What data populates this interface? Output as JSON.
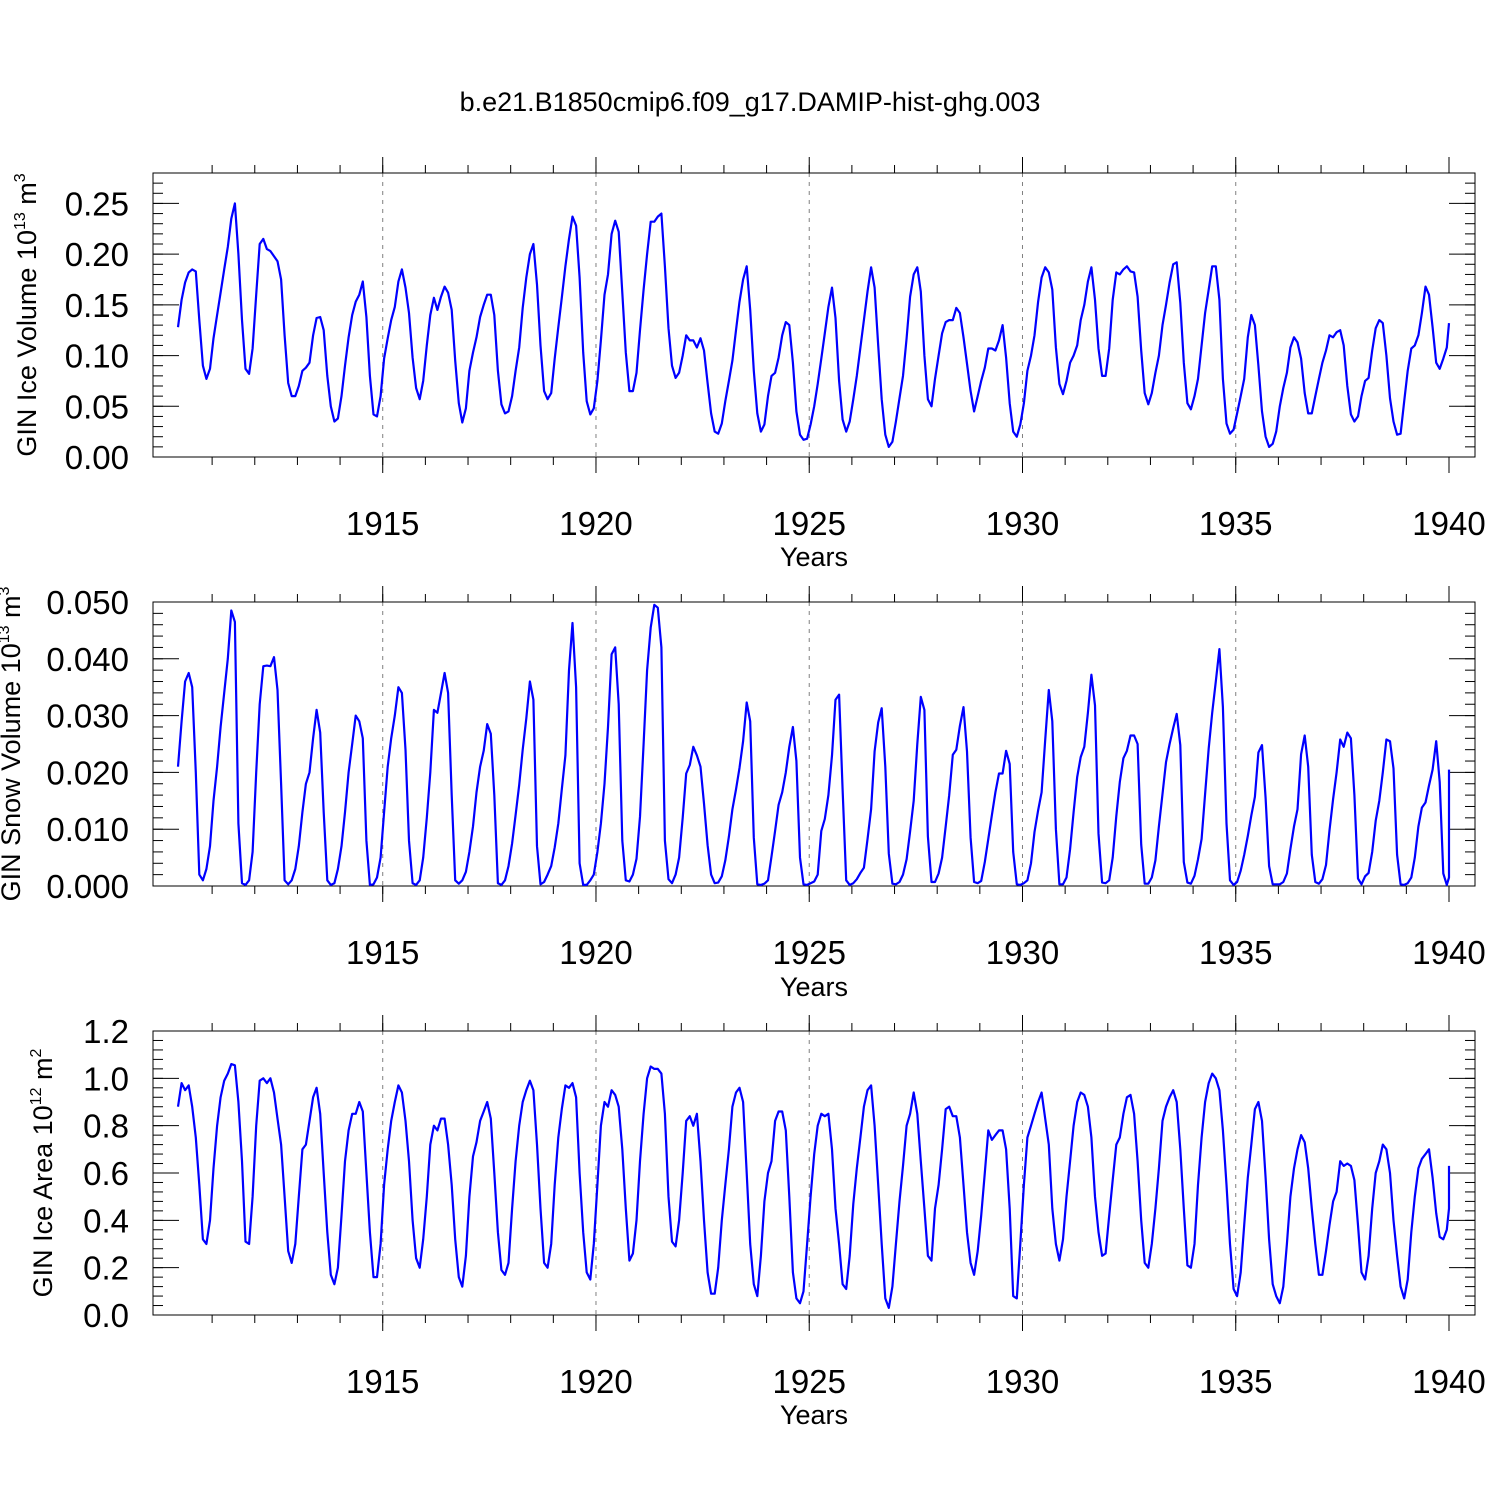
{
  "figure_title": "b.e21.B1850cmip6.f09_g17.DAMIP-hist-ghg.003",
  "colors": {
    "series": "#0000ff",
    "axes": "#000000",
    "gridlines": "#808080"
  },
  "chart_data": [
    {
      "id": "ice-volume",
      "type": "line",
      "title": "b.e21.B1850cmip6.f09_g17.DAMIP-hist-ghg.003",
      "xlabel": "Years",
      "ylabel": {
        "prefix": "GIN Ice Volume 10",
        "exponent": "13",
        "unit": " m",
        "unit_exponent": "3"
      },
      "xlim": [
        1910.2,
        1940.0
      ],
      "ylim": [
        0.0,
        0.28
      ],
      "x_ticks": [
        1915,
        1920,
        1925,
        1930,
        1935,
        1940
      ],
      "x_tick_labels": [
        "1915",
        "1920",
        "1925",
        "1930",
        "1935",
        "1940"
      ],
      "y_ticks": [
        0.0,
        0.05,
        0.1,
        0.15,
        0.2,
        0.25
      ],
      "y_tick_labels": [
        "0.00",
        "0.05",
        "0.10",
        "0.15",
        "0.20",
        "0.25"
      ],
      "series_name": "GIN Ice Volume",
      "x_start": 1910.2,
      "x_step": 0.08333,
      "values": [
        0.128,
        0.155,
        0.172,
        0.182,
        0.185,
        0.183,
        0.135,
        0.09,
        0.077,
        0.087,
        0.117,
        0.14,
        0.162,
        0.185,
        0.207,
        0.235,
        0.25,
        0.2,
        0.135,
        0.087,
        0.082,
        0.107,
        0.16,
        0.21,
        0.215,
        0.205,
        0.203,
        0.198,
        0.193,
        0.175,
        0.12,
        0.073,
        0.06,
        0.06,
        0.07,
        0.085,
        0.088,
        0.093,
        0.12,
        0.137,
        0.138,
        0.125,
        0.08,
        0.05,
        0.035,
        0.038,
        0.06,
        0.09,
        0.118,
        0.14,
        0.153,
        0.16,
        0.173,
        0.138,
        0.08,
        0.042,
        0.04,
        0.06,
        0.097,
        0.117,
        0.135,
        0.148,
        0.173,
        0.185,
        0.167,
        0.142,
        0.098,
        0.068,
        0.057,
        0.075,
        0.11,
        0.14,
        0.157,
        0.145,
        0.158,
        0.168,
        0.162,
        0.145,
        0.095,
        0.053,
        0.034,
        0.048,
        0.085,
        0.103,
        0.118,
        0.138,
        0.15,
        0.16,
        0.16,
        0.14,
        0.085,
        0.052,
        0.043,
        0.045,
        0.06,
        0.085,
        0.108,
        0.147,
        0.177,
        0.2,
        0.21,
        0.17,
        0.11,
        0.065,
        0.057,
        0.063,
        0.097,
        0.128,
        0.157,
        0.188,
        0.215,
        0.237,
        0.228,
        0.177,
        0.103,
        0.055,
        0.042,
        0.048,
        0.075,
        0.115,
        0.16,
        0.18,
        0.22,
        0.233,
        0.222,
        0.162,
        0.103,
        0.065,
        0.065,
        0.083,
        0.125,
        0.165,
        0.2,
        0.232,
        0.232,
        0.237,
        0.24,
        0.188,
        0.127,
        0.09,
        0.078,
        0.083,
        0.1,
        0.12,
        0.115,
        0.115,
        0.108,
        0.117,
        0.105,
        0.073,
        0.043,
        0.025,
        0.023,
        0.033,
        0.055,
        0.075,
        0.095,
        0.125,
        0.153,
        0.175,
        0.188,
        0.145,
        0.085,
        0.043,
        0.025,
        0.032,
        0.06,
        0.08,
        0.083,
        0.098,
        0.12,
        0.133,
        0.13,
        0.093,
        0.045,
        0.022,
        0.017,
        0.018,
        0.032,
        0.05,
        0.072,
        0.097,
        0.122,
        0.148,
        0.167,
        0.137,
        0.075,
        0.037,
        0.025,
        0.035,
        0.057,
        0.08,
        0.108,
        0.135,
        0.163,
        0.187,
        0.167,
        0.11,
        0.057,
        0.022,
        0.01,
        0.015,
        0.035,
        0.058,
        0.08,
        0.117,
        0.158,
        0.18,
        0.187,
        0.163,
        0.1,
        0.057,
        0.05,
        0.077,
        0.1,
        0.122,
        0.133,
        0.135,
        0.135,
        0.147,
        0.142,
        0.118,
        0.092,
        0.065,
        0.045,
        0.06,
        0.075,
        0.088,
        0.107,
        0.107,
        0.105,
        0.115,
        0.13,
        0.098,
        0.053,
        0.025,
        0.02,
        0.032,
        0.053,
        0.085,
        0.1,
        0.12,
        0.153,
        0.177,
        0.187,
        0.182,
        0.165,
        0.108,
        0.072,
        0.062,
        0.075,
        0.093,
        0.1,
        0.11,
        0.135,
        0.15,
        0.173,
        0.187,
        0.155,
        0.107,
        0.08,
        0.08,
        0.107,
        0.155,
        0.182,
        0.18,
        0.185,
        0.188,
        0.183,
        0.182,
        0.158,
        0.105,
        0.063,
        0.052,
        0.063,
        0.083,
        0.1,
        0.13,
        0.15,
        0.172,
        0.19,
        0.192,
        0.152,
        0.093,
        0.053,
        0.047,
        0.06,
        0.077,
        0.11,
        0.142,
        0.165,
        0.188,
        0.188,
        0.155,
        0.077,
        0.033,
        0.023,
        0.027,
        0.043,
        0.06,
        0.077,
        0.118,
        0.14,
        0.13,
        0.09,
        0.045,
        0.02,
        0.01,
        0.013,
        0.025,
        0.05,
        0.068,
        0.083,
        0.108,
        0.118,
        0.113,
        0.097,
        0.063,
        0.043,
        0.043,
        0.06,
        0.077,
        0.093,
        0.105,
        0.12,
        0.118,
        0.123,
        0.125,
        0.11,
        0.07,
        0.042,
        0.035,
        0.04,
        0.06,
        0.075,
        0.078,
        0.105,
        0.127,
        0.135,
        0.132,
        0.1,
        0.058,
        0.035,
        0.022,
        0.023,
        0.055,
        0.085,
        0.107,
        0.11,
        0.12,
        0.142,
        0.168,
        0.16,
        0.128,
        0.093,
        0.087,
        0.097,
        0.108,
        0.132
      ]
    },
    {
      "id": "snow-volume",
      "type": "line",
      "xlabel": "Years",
      "ylabel": {
        "prefix": "GIN Snow Volume 10",
        "exponent": "13",
        "unit": " m",
        "unit_exponent": "3"
      },
      "xlim": [
        1910.2,
        1940.0
      ],
      "ylim": [
        0.0,
        0.05
      ],
      "x_ticks": [
        1915,
        1920,
        1925,
        1930,
        1935,
        1940
      ],
      "x_tick_labels": [
        "1915",
        "1920",
        "1925",
        "1930",
        "1935",
        "1940"
      ],
      "y_ticks": [
        0.0,
        0.01,
        0.02,
        0.03,
        0.04,
        0.05
      ],
      "y_tick_labels": [
        "0.000",
        "0.010",
        "0.020",
        "0.030",
        "0.040",
        "0.050"
      ],
      "series_name": "GIN Snow Volume",
      "x_start": 1910.2,
      "x_step": 0.08333,
      "values": [
        0.021,
        0.029,
        0.036,
        0.0375,
        0.035,
        0.02,
        0.002,
        0.001,
        0.003,
        0.007,
        0.015,
        0.021,
        0.028,
        0.034,
        0.04,
        0.0485,
        0.0465,
        0.011,
        0.0005,
        0.0002,
        0.001,
        0.006,
        0.02,
        0.032,
        0.0387,
        0.0388,
        0.0387,
        0.0403,
        0.0345,
        0.018,
        0.001,
        0.0003,
        0.001,
        0.003,
        0.007,
        0.013,
        0.018,
        0.02,
        0.026,
        0.031,
        0.027,
        0.013,
        0.001,
        0.0002,
        0.0005,
        0.003,
        0.007,
        0.013,
        0.02,
        0.025,
        0.03,
        0.029,
        0.026,
        0.008,
        0.0002,
        0.0003,
        0.0015,
        0.005,
        0.013,
        0.021,
        0.026,
        0.03,
        0.035,
        0.034,
        0.024,
        0.008,
        0.0005,
        0.0002,
        0.001,
        0.005,
        0.012,
        0.02,
        0.031,
        0.0305,
        0.034,
        0.0375,
        0.034,
        0.016,
        0.001,
        0.0004,
        0.001,
        0.0025,
        0.006,
        0.0105,
        0.0165,
        0.021,
        0.0238,
        0.0285,
        0.0268,
        0.016,
        0.0005,
        0.0002,
        0.001,
        0.0035,
        0.0075,
        0.0125,
        0.0178,
        0.024,
        0.0295,
        0.036,
        0.0328,
        0.007,
        0.0003,
        0.0007,
        0.002,
        0.0035,
        0.0068,
        0.011,
        0.017,
        0.023,
        0.038,
        0.0463,
        0.035,
        0.004,
        0.0002,
        0.0002,
        0.001,
        0.002,
        0.006,
        0.011,
        0.018,
        0.028,
        0.0408,
        0.042,
        0.032,
        0.008,
        0.001,
        0.0008,
        0.002,
        0.0048,
        0.0122,
        0.025,
        0.038,
        0.0455,
        0.0495,
        0.049,
        0.042,
        0.008,
        0.0012,
        0.0005,
        0.002,
        0.005,
        0.012,
        0.0198,
        0.0213,
        0.0245,
        0.023,
        0.021,
        0.0145,
        0.0072,
        0.002,
        0.0005,
        0.0006,
        0.0017,
        0.0045,
        0.0087,
        0.0135,
        0.017,
        0.0208,
        0.0255,
        0.0323,
        0.029,
        0.0085,
        0.0003,
        0.0002,
        0.0004,
        0.001,
        0.0052,
        0.0097,
        0.0143,
        0.0165,
        0.02,
        0.0245,
        0.028,
        0.022,
        0.005,
        0.0003,
        0.0002,
        0.0005,
        0.0008,
        0.002,
        0.0097,
        0.0118,
        0.016,
        0.023,
        0.0328,
        0.0337,
        0.017,
        0.001,
        0.0002,
        0.0005,
        0.0012,
        0.0023,
        0.0032,
        0.0082,
        0.0135,
        0.0237,
        0.0288,
        0.0313,
        0.021,
        0.0057,
        0.0004,
        0.0003,
        0.0007,
        0.002,
        0.0047,
        0.0096,
        0.015,
        0.025,
        0.0333,
        0.031,
        0.0087,
        0.0007,
        0.0007,
        0.0022,
        0.005,
        0.0105,
        0.016,
        0.0231,
        0.024,
        0.0282,
        0.0315,
        0.0237,
        0.0085,
        0.0007,
        0.0005,
        0.0009,
        0.0042,
        0.0083,
        0.0125,
        0.0165,
        0.0198,
        0.0198,
        0.0238,
        0.0215,
        0.006,
        0.0003,
        0.0002,
        0.0005,
        0.001,
        0.004,
        0.0095,
        0.0133,
        0.0165,
        0.0257,
        0.0345,
        0.029,
        0.01,
        0.0003,
        0.0003,
        0.0015,
        0.0065,
        0.013,
        0.0192,
        0.0227,
        0.0245,
        0.0305,
        0.0372,
        0.0318,
        0.0092,
        0.0006,
        0.0005,
        0.001,
        0.005,
        0.0123,
        0.0183,
        0.0225,
        0.0238,
        0.0265,
        0.0265,
        0.025,
        0.0073,
        0.0004,
        0.0004,
        0.0015,
        0.0045,
        0.0105,
        0.0162,
        0.0218,
        0.025,
        0.0278,
        0.0303,
        0.0248,
        0.0042,
        0.0006,
        0.0004,
        0.0018,
        0.0047,
        0.0083,
        0.0162,
        0.0242,
        0.0305,
        0.036,
        0.0417,
        0.0315,
        0.011,
        0.001,
        0.0002,
        0.0007,
        0.0027,
        0.0055,
        0.0088,
        0.0124,
        0.0157,
        0.0235,
        0.0248,
        0.0155,
        0.0035,
        0.0003,
        0.0003,
        0.0003,
        0.0007,
        0.0022,
        0.0065,
        0.0105,
        0.0135,
        0.0232,
        0.0265,
        0.021,
        0.0055,
        0.0007,
        0.0004,
        0.0012,
        0.0037,
        0.0098,
        0.0153,
        0.02,
        0.0258,
        0.0245,
        0.027,
        0.026,
        0.016,
        0.0013,
        0.0003,
        0.0017,
        0.0023,
        0.006,
        0.0115,
        0.015,
        0.02,
        0.0258,
        0.0255,
        0.0207,
        0.0055,
        0.0003,
        0.0002,
        0.0005,
        0.0015,
        0.005,
        0.0105,
        0.0138,
        0.0147,
        0.0177,
        0.0205,
        0.0255,
        0.0183,
        0.0022,
        0.0002,
        0.0015,
        0.0045,
        0.0105,
        0.0205
      ]
    },
    {
      "id": "ice-area",
      "type": "line",
      "xlabel": "Years",
      "ylabel": {
        "prefix": "GIN Ice Area 10",
        "exponent": "12",
        "unit": " m",
        "unit_exponent": "2"
      },
      "xlim": [
        1910.2,
        1940.0
      ],
      "ylim": [
        0.0,
        1.2
      ],
      "x_ticks": [
        1915,
        1920,
        1925,
        1930,
        1935,
        1940
      ],
      "x_tick_labels": [
        "1915",
        "1920",
        "1925",
        "1930",
        "1935",
        "1940"
      ],
      "y_ticks": [
        0.0,
        0.2,
        0.4,
        0.6,
        0.8,
        1.0,
        1.2
      ],
      "y_tick_labels": [
        "0.0",
        "0.2",
        "0.4",
        "0.6",
        "0.8",
        "1.0",
        "1.2"
      ],
      "series_name": "GIN Ice Area",
      "x_start": 1910.2,
      "x_step": 0.08333,
      "values": [
        0.88,
        0.98,
        0.95,
        0.97,
        0.88,
        0.75,
        0.55,
        0.32,
        0.3,
        0.4,
        0.62,
        0.8,
        0.92,
        0.99,
        1.02,
        1.06,
        1.055,
        0.9,
        0.65,
        0.31,
        0.3,
        0.5,
        0.8,
        0.99,
        1.0,
        0.98,
        1.0,
        0.94,
        0.83,
        0.72,
        0.5,
        0.27,
        0.22,
        0.3,
        0.5,
        0.7,
        0.72,
        0.82,
        0.92,
        0.96,
        0.85,
        0.6,
        0.35,
        0.17,
        0.13,
        0.2,
        0.42,
        0.65,
        0.78,
        0.85,
        0.85,
        0.9,
        0.86,
        0.6,
        0.35,
        0.16,
        0.16,
        0.3,
        0.55,
        0.7,
        0.82,
        0.9,
        0.97,
        0.94,
        0.82,
        0.65,
        0.4,
        0.24,
        0.2,
        0.32,
        0.5,
        0.72,
        0.8,
        0.78,
        0.83,
        0.83,
        0.72,
        0.55,
        0.32,
        0.16,
        0.12,
        0.25,
        0.5,
        0.67,
        0.73,
        0.82,
        0.86,
        0.9,
        0.83,
        0.6,
        0.35,
        0.19,
        0.17,
        0.22,
        0.45,
        0.65,
        0.8,
        0.9,
        0.95,
        0.99,
        0.95,
        0.72,
        0.45,
        0.22,
        0.2,
        0.3,
        0.55,
        0.75,
        0.87,
        0.97,
        0.96,
        0.98,
        0.92,
        0.6,
        0.35,
        0.18,
        0.15,
        0.3,
        0.55,
        0.8,
        0.9,
        0.88,
        0.95,
        0.93,
        0.88,
        0.7,
        0.45,
        0.23,
        0.26,
        0.4,
        0.65,
        0.85,
        1.0,
        1.05,
        1.04,
        1.04,
        1.02,
        0.85,
        0.5,
        0.31,
        0.29,
        0.4,
        0.6,
        0.82,
        0.84,
        0.8,
        0.85,
        0.65,
        0.4,
        0.18,
        0.09,
        0.09,
        0.2,
        0.4,
        0.55,
        0.7,
        0.88,
        0.94,
        0.96,
        0.9,
        0.6,
        0.3,
        0.13,
        0.08,
        0.25,
        0.48,
        0.6,
        0.65,
        0.82,
        0.86,
        0.86,
        0.78,
        0.5,
        0.18,
        0.07,
        0.05,
        0.1,
        0.3,
        0.5,
        0.68,
        0.8,
        0.85,
        0.84,
        0.85,
        0.7,
        0.45,
        0.3,
        0.13,
        0.11,
        0.25,
        0.47,
        0.62,
        0.75,
        0.88,
        0.95,
        0.97,
        0.8,
        0.55,
        0.3,
        0.07,
        0.03,
        0.12,
        0.3,
        0.48,
        0.63,
        0.8,
        0.85,
        0.94,
        0.85,
        0.65,
        0.45,
        0.25,
        0.23,
        0.45,
        0.55,
        0.7,
        0.87,
        0.88,
        0.84,
        0.84,
        0.75,
        0.55,
        0.35,
        0.22,
        0.17,
        0.27,
        0.42,
        0.6,
        0.78,
        0.74,
        0.76,
        0.78,
        0.78,
        0.7,
        0.45,
        0.08,
        0.07,
        0.3,
        0.55,
        0.75,
        0.8,
        0.85,
        0.9,
        0.94,
        0.83,
        0.72,
        0.45,
        0.3,
        0.23,
        0.32,
        0.5,
        0.65,
        0.8,
        0.9,
        0.94,
        0.93,
        0.88,
        0.75,
        0.5,
        0.35,
        0.25,
        0.26,
        0.42,
        0.57,
        0.72,
        0.75,
        0.85,
        0.92,
        0.93,
        0.85,
        0.65,
        0.4,
        0.22,
        0.2,
        0.3,
        0.45,
        0.62,
        0.82,
        0.88,
        0.92,
        0.95,
        0.9,
        0.7,
        0.45,
        0.21,
        0.2,
        0.3,
        0.55,
        0.75,
        0.9,
        0.98,
        1.02,
        1.0,
        0.95,
        0.78,
        0.55,
        0.3,
        0.11,
        0.08,
        0.18,
        0.38,
        0.58,
        0.72,
        0.87,
        0.9,
        0.82,
        0.58,
        0.32,
        0.13,
        0.08,
        0.05,
        0.12,
        0.3,
        0.5,
        0.62,
        0.7,
        0.76,
        0.73,
        0.62,
        0.45,
        0.3,
        0.17,
        0.17,
        0.27,
        0.38,
        0.48,
        0.52,
        0.65,
        0.63,
        0.64,
        0.63,
        0.57,
        0.38,
        0.18,
        0.15,
        0.25,
        0.45,
        0.6,
        0.65,
        0.72,
        0.7,
        0.6,
        0.4,
        0.25,
        0.12,
        0.07,
        0.15,
        0.35,
        0.5,
        0.62,
        0.66,
        0.68,
        0.7,
        0.58,
        0.43,
        0.33,
        0.32,
        0.36,
        0.45,
        0.63
      ]
    }
  ]
}
